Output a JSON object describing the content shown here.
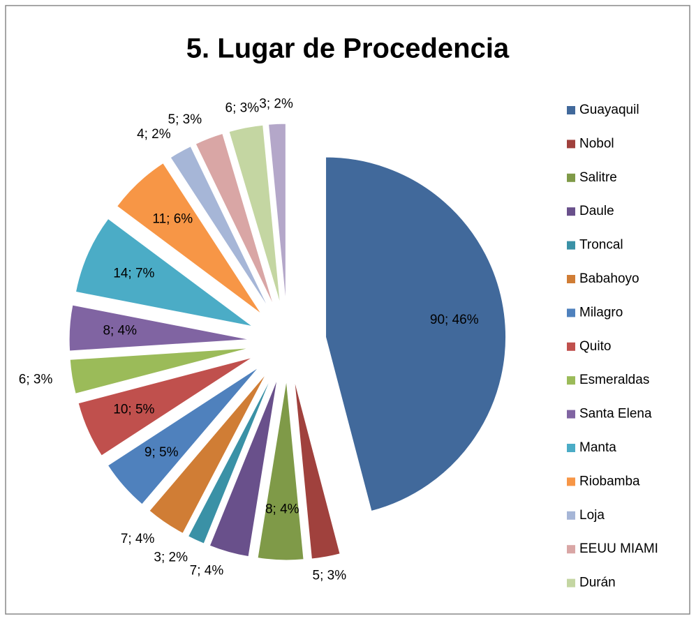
{
  "chart_data": {
    "type": "pie",
    "title": "5. Lugar de Procedencia",
    "categories": [
      "Guayaquil",
      "Nobol",
      "Salitre",
      "Daule",
      "Troncal",
      "Babahoyo",
      "Milagro",
      "Quito",
      "Esmeraldas",
      "Santa Elena",
      "Manta",
      "Riobamba",
      "Loja",
      "EEUU MIAMI",
      "Durán",
      null
    ],
    "values": [
      90,
      5,
      8,
      7,
      3,
      7,
      9,
      10,
      6,
      8,
      14,
      11,
      4,
      5,
      6,
      3
    ],
    "value_labels": [
      "90; 46%",
      "5; 3%",
      "8; 4%",
      "7; 4%",
      "3; 2%",
      "7; 4%",
      "9; 5%",
      "10; 5%",
      "6; 3%",
      "8; 4%",
      "14; 7%",
      "11; 6%",
      "4; 2%",
      "5; 3%",
      "6; 3%",
      "3; 2%"
    ],
    "colors": [
      "#41699b",
      "#a0413d",
      "#7f9a48",
      "#69508b",
      "#3a91a6",
      "#d07d35",
      "#4f81bd",
      "#c0504d",
      "#9bbb59",
      "#8064a2",
      "#4bacc6",
      "#f79646",
      "#a6b6d7",
      "#d9a6a5",
      "#c4d6a2",
      "#b4a7c9"
    ],
    "legend": "right"
  }
}
